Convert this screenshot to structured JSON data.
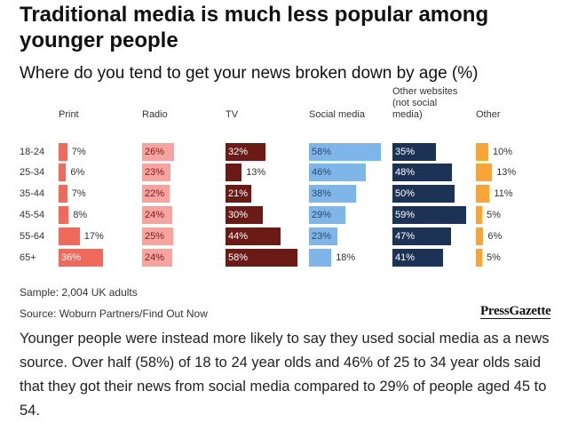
{
  "title": "Traditional media is much less popular among younger people",
  "subtitle": "Where do you tend to get your news broken down by age (%)",
  "sample": "Sample: 2,004 UK adults",
  "source": "Source: Woburn Partners/Find Out Now",
  "brand": "PressGazette",
  "paragraph": "Younger people were instead more likely to say they used social media as a news source. Over half (58%) of 18 to 24 year olds and 46% of 25 to 34 year olds said that they got their news from social media compared to 29% of people aged 45 to 54.",
  "chart_data": {
    "type": "bar",
    "title": "Traditional media is much less popular among younger people",
    "subtitle": "Where do you tend to get your news broken down by age (%)",
    "categories": [
      "18-24",
      "25-34",
      "35-44",
      "45-54",
      "55-64",
      "65+"
    ],
    "series": [
      {
        "name": "Print",
        "color": "#f06a5c",
        "label_color": "#ffffff",
        "values": [
          7,
          6,
          7,
          8,
          17,
          36
        ]
      },
      {
        "name": "Radio",
        "color": "#f7a3a0",
        "label_color": "#7a1c1c",
        "values": [
          26,
          23,
          22,
          24,
          25,
          24
        ]
      },
      {
        "name": "TV",
        "color": "#6b1a16",
        "label_color": "#ffffff",
        "values": [
          32,
          13,
          21,
          30,
          44,
          58
        ]
      },
      {
        "name": "Social media",
        "color": "#7fb6ea",
        "label_color": "#2b4a6b",
        "values": [
          58,
          46,
          38,
          29,
          23,
          18
        ]
      },
      {
        "name": "Other websites\n(not social\nmedia)",
        "color": "#1c3355",
        "label_color": "#ffffff",
        "values": [
          35,
          48,
          50,
          59,
          47,
          41
        ]
      },
      {
        "name": "Other",
        "color": "#f7a537",
        "label_color": "#333333",
        "values": [
          10,
          13,
          11,
          5,
          6,
          5
        ]
      }
    ],
    "value_suffix": "%",
    "xlim": [
      0,
      60
    ],
    "legend": "column headers"
  }
}
